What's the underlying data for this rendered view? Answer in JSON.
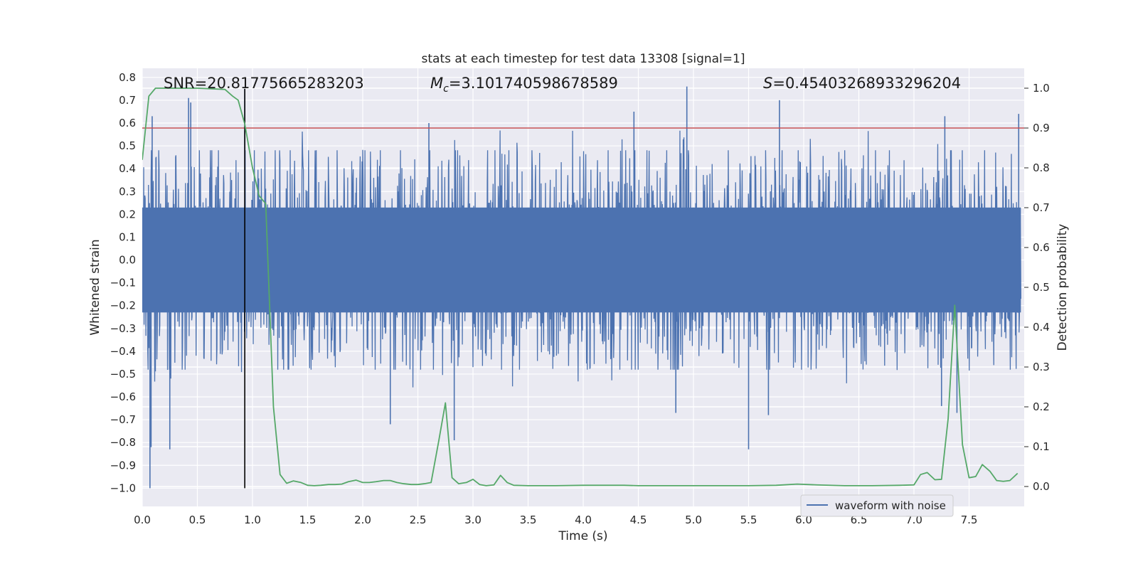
{
  "chart_data": {
    "type": "line",
    "title": "stats at each timestep for test data 13308 [signal=1]",
    "xlabel": "Time (s)",
    "ylabel": "Whitened strain",
    "ylabel_right": "Detection probability",
    "xlim": [
      0.0,
      8.0
    ],
    "ylim": [
      -1.08,
      0.84
    ],
    "ylim_right": [
      -0.05,
      1.05
    ],
    "x_ticks": [
      0.0,
      0.5,
      1.0,
      1.5,
      2.0,
      2.5,
      3.0,
      3.5,
      4.0,
      4.5,
      5.0,
      5.5,
      6.0,
      6.5,
      7.0,
      7.5
    ],
    "x_tick_labels": [
      "0.0",
      "0.5",
      "1.0",
      "1.5",
      "2.0",
      "2.5",
      "3.0",
      "3.5",
      "4.0",
      "4.5",
      "5.0",
      "5.5",
      "6.0",
      "6.5",
      "7.0",
      "7.5"
    ],
    "y_ticks": [
      0.8,
      0.7,
      0.6,
      0.5,
      0.4,
      0.3,
      0.2,
      0.1,
      0.0,
      -0.1,
      -0.2,
      -0.3,
      -0.4,
      -0.5,
      -0.6,
      -0.7,
      -0.8,
      -0.9,
      -1.0
    ],
    "y_tick_labels": [
      "0.8",
      "0.7",
      "0.6",
      "0.5",
      "0.4",
      "0.3",
      "0.2",
      "0.1",
      "0.0",
      "−0.1",
      "−0.2",
      "−0.3",
      "−0.4",
      "−0.5",
      "−0.6",
      "−0.7",
      "−0.8",
      "−0.9",
      "−1.0"
    ],
    "y_right_ticks": [
      1.0,
      0.9,
      0.8,
      0.7,
      0.6,
      0.5,
      0.4,
      0.3,
      0.2,
      0.1,
      0.0
    ],
    "y_right_tick_labels": [
      "1.0",
      "0.9",
      "0.8",
      "0.7",
      "0.6",
      "0.5",
      "0.4",
      "0.3",
      "0.2",
      "0.1",
      "0.0"
    ],
    "annotations": {
      "snr": "SNR=20.81775665283203",
      "mc_symbol": "M",
      "mc_sub": "c",
      "mc_value": "=3.101740598678589",
      "s_symbol": "S",
      "s_value": "=0.45403268933296204"
    },
    "legend": {
      "label": "waveform with noise",
      "position": "lower-right"
    },
    "threshold_line": {
      "value": 0.9,
      "axis": "right",
      "color": "#c44e52"
    },
    "vertical_marker": {
      "x": 0.93,
      "y_from": -1.0,
      "y_to": 0.75,
      "color": "#000000"
    },
    "waveform": {
      "name": "waveform with noise",
      "color": "#4c72b0",
      "core_amplitude": 0.23,
      "typical_peak": 0.45,
      "max": 0.75,
      "min": -1.0,
      "spikes_up": [
        [
          0.09,
          0.63
        ],
        [
          0.42,
          0.71
        ],
        [
          0.44,
          0.69
        ],
        [
          0.93,
          0.75
        ],
        [
          2.6,
          0.6
        ],
        [
          4.46,
          0.65
        ],
        [
          4.94,
          0.76
        ],
        [
          5.78,
          0.7
        ],
        [
          7.28,
          0.63
        ],
        [
          7.95,
          0.64
        ]
      ],
      "spikes_down": [
        [
          0.07,
          -1.0
        ],
        [
          0.08,
          -0.82
        ],
        [
          0.25,
          -0.83
        ],
        [
          2.25,
          -0.72
        ],
        [
          2.83,
          -0.79
        ],
        [
          4.84,
          -0.67
        ],
        [
          5.5,
          -0.83
        ],
        [
          5.68,
          -0.68
        ],
        [
          7.25,
          -0.64
        ],
        [
          7.39,
          -0.67
        ]
      ]
    },
    "probability_series": {
      "name": "Detection probability",
      "color": "#55a868",
      "axis": "right",
      "x": [
        0.0,
        0.06,
        0.12,
        0.25,
        0.5,
        0.75,
        0.82,
        0.87,
        0.93,
        1.0,
        1.06,
        1.12,
        1.19,
        1.25,
        1.31,
        1.37,
        1.44,
        1.5,
        1.56,
        1.62,
        1.69,
        1.75,
        1.81,
        1.87,
        1.94,
        2.0,
        2.06,
        2.12,
        2.19,
        2.25,
        2.31,
        2.37,
        2.44,
        2.5,
        2.56,
        2.62,
        2.69,
        2.75,
        2.81,
        2.87,
        2.94,
        3.0,
        3.06,
        3.12,
        3.19,
        3.25,
        3.31,
        3.37,
        3.5,
        3.75,
        4.0,
        4.12,
        4.37,
        4.5,
        4.75,
        5.0,
        5.25,
        5.5,
        5.75,
        5.94,
        6.12,
        6.37,
        6.62,
        6.87,
        7.0,
        7.06,
        7.12,
        7.19,
        7.25,
        7.31,
        7.37,
        7.44,
        7.5,
        7.56,
        7.62,
        7.69,
        7.75,
        7.81,
        7.87,
        7.94
      ],
      "values": [
        0.82,
        0.98,
        1.0,
        1.0,
        1.0,
        0.997,
        0.98,
        0.97,
        0.91,
        0.8,
        0.73,
        0.71,
        0.2,
        0.03,
        0.008,
        0.014,
        0.01,
        0.003,
        0.002,
        0.003,
        0.005,
        0.005,
        0.006,
        0.012,
        0.016,
        0.01,
        0.01,
        0.012,
        0.015,
        0.015,
        0.01,
        0.007,
        0.005,
        0.005,
        0.007,
        0.01,
        0.115,
        0.21,
        0.022,
        0.007,
        0.01,
        0.018,
        0.005,
        0.002,
        0.004,
        0.028,
        0.01,
        0.003,
        0.002,
        0.002,
        0.003,
        0.003,
        0.003,
        0.002,
        0.002,
        0.002,
        0.002,
        0.002,
        0.003,
        0.006,
        0.004,
        0.002,
        0.002,
        0.003,
        0.004,
        0.03,
        0.035,
        0.017,
        0.018,
        0.17,
        0.455,
        0.105,
        0.022,
        0.025,
        0.055,
        0.038,
        0.015,
        0.013,
        0.015,
        0.033
      ]
    }
  }
}
